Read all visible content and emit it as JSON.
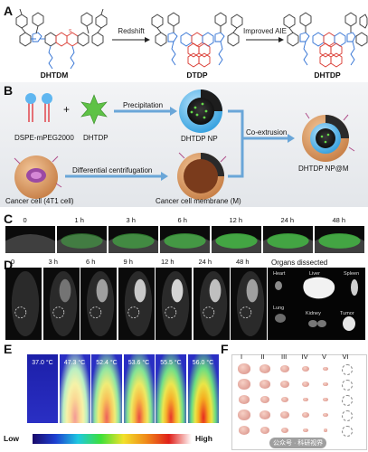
{
  "panels": {
    "a": "A",
    "b": "B",
    "c": "C",
    "d": "D",
    "e": "E",
    "f": "F"
  },
  "panel_a": {
    "molecules": [
      "DHTDM",
      "DTDP",
      "DHTDP"
    ],
    "arrows": [
      "Redshift",
      "Improved AIE"
    ]
  },
  "panel_b": {
    "dspe": "DSPE-mPEG2000",
    "plus": "+",
    "dhtdp": "DHTDP",
    "precipitation": "Precipitation",
    "dhtdp_np": "DHTDP NP",
    "co_extrusion": "Co-extrusion",
    "final": "DHTDP NP@M",
    "differential": "Differential centrifugation",
    "cancer_cell": "Cancer cell (4T1 cell)",
    "membrane": "Cancer cell membrane (M)"
  },
  "panel_c": {
    "times": [
      "0",
      "1 h",
      "3 h",
      "6 h",
      "12 h",
      "24 h",
      "48 h"
    ]
  },
  "panel_d": {
    "times": [
      "0",
      "3 h",
      "6 h",
      "9 h",
      "12 h",
      "24 h",
      "48 h"
    ],
    "organs_title": "Organs dissected",
    "organs": [
      "Heart",
      "Liver",
      "Spleen",
      "Lung",
      "Kidney",
      "Tumor"
    ]
  },
  "panel_e": {
    "temps": [
      "37.0 °C",
      "47.3 °C",
      "52.4 °C",
      "53.6 °C",
      "55.5 °C",
      "56.0 °C"
    ],
    "scale_low": "Low",
    "scale_high": "High"
  },
  "panel_f": {
    "groups": [
      "I",
      "II",
      "III",
      "IV",
      "V",
      "VI"
    ]
  },
  "watermark": "公众号 · 科研视界"
}
